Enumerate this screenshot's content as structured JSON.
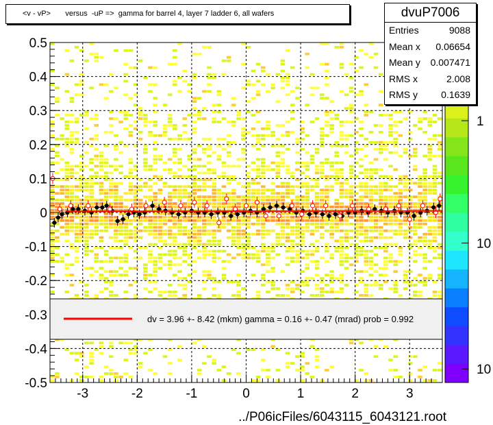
{
  "chart_data": {
    "type": "heatmap",
    "title": "<v - vP>       versus  -uP =>  gamma for barrel 4, layer 7 ladder 6, all wafers",
    "xlabel": "../P06icFiles/6043115_6043121.root",
    "ylabel": "",
    "xlim": [
      -3.6,
      3.6
    ],
    "ylim": [
      -0.5,
      0.5
    ],
    "x_ticks": [
      {
        "v": -3,
        "label": "-3"
      },
      {
        "v": -2,
        "label": "-2"
      },
      {
        "v": -1,
        "label": "-1"
      },
      {
        "v": 0,
        "label": "0"
      },
      {
        "v": 1,
        "label": "1"
      },
      {
        "v": 2,
        "label": "2"
      },
      {
        "v": 3,
        "label": "3"
      }
    ],
    "y_ticks": [
      {
        "v": 0.5,
        "label": "0.5"
      },
      {
        "v": 0.4,
        "label": "0.4"
      },
      {
        "v": 0.3,
        "label": "0.3"
      },
      {
        "v": 0.2,
        "label": "0.2"
      },
      {
        "v": 0.1,
        "label": "0.1"
      },
      {
        "v": 0,
        "label": "0"
      },
      {
        "v": -0.1,
        "label": "-0.1"
      },
      {
        "v": -0.2,
        "label": "-0.2"
      },
      {
        "v": -0.3,
        "label": "-0.3"
      },
      {
        "v": -0.4,
        "label": "-0.4"
      },
      {
        "v": -0.5,
        "label": "-0.5"
      }
    ],
    "grid": true,
    "colorbar": {
      "scale": "log",
      "labels": [
        {
          "label": "1",
          "frac": 0.77
        },
        {
          "label": "10",
          "frac": 0.41
        },
        {
          "label": "10",
          "frac": 0.04
        }
      ],
      "colors": [
        "#7f00ff",
        "#5a19ff",
        "#3333ff",
        "#0f4cff",
        "#0a7fff",
        "#14b4ff",
        "#1fe6ff",
        "#33ffcc",
        "#2fffa0",
        "#33ff66",
        "#36f32e",
        "#5ae61c",
        "#84e61a",
        "#b4e619",
        "#dcf01a",
        "#ffff33",
        "#ffd633",
        "#ff9933"
      ]
    },
    "fit_line": {
      "slope": 0.00016,
      "intercept": 0.00396
    },
    "profile_points_black": [
      {
        "x": -3.52,
        "y": -0.03
      },
      {
        "x": -3.45,
        "y": -0.015
      },
      {
        "x": -3.38,
        "y": -0.005
      },
      {
        "x": -3.28,
        "y": 0.0
      },
      {
        "x": -3.18,
        "y": 0.01
      },
      {
        "x": -3.08,
        "y": 0.01
      },
      {
        "x": -2.96,
        "y": 0.005
      },
      {
        "x": -2.84,
        "y": 0.0
      },
      {
        "x": -2.74,
        "y": 0.015
      },
      {
        "x": -2.64,
        "y": 0.015
      },
      {
        "x": -2.56,
        "y": 0.02
      },
      {
        "x": -2.46,
        "y": 0.005
      },
      {
        "x": -2.36,
        "y": -0.025
      },
      {
        "x": -2.26,
        "y": -0.02
      },
      {
        "x": -2.16,
        "y": -0.005
      },
      {
        "x": -2.06,
        "y": 0.0
      },
      {
        "x": -1.96,
        "y": -0.005
      },
      {
        "x": -1.86,
        "y": 0.0
      },
      {
        "x": -1.72,
        "y": 0.02
      },
      {
        "x": -1.6,
        "y": 0.01
      },
      {
        "x": -1.48,
        "y": 0.005
      },
      {
        "x": -1.36,
        "y": 0.0
      },
      {
        "x": -1.24,
        "y": -0.005
      },
      {
        "x": -1.12,
        "y": 0.0
      },
      {
        "x": -1.0,
        "y": 0.005
      },
      {
        "x": -0.88,
        "y": 0.0
      },
      {
        "x": -0.76,
        "y": 0.0
      },
      {
        "x": -0.64,
        "y": -0.005
      },
      {
        "x": -0.52,
        "y": 0.0
      },
      {
        "x": -0.4,
        "y": 0.0
      },
      {
        "x": -0.28,
        "y": -0.01
      },
      {
        "x": -0.16,
        "y": -0.005
      },
      {
        "x": -0.04,
        "y": 0.0
      },
      {
        "x": 0.08,
        "y": 0.005
      },
      {
        "x": 0.2,
        "y": 0.0
      },
      {
        "x": 0.32,
        "y": 0.01
      },
      {
        "x": 0.44,
        "y": 0.015
      },
      {
        "x": 0.56,
        "y": 0.02
      },
      {
        "x": 0.68,
        "y": 0.015
      },
      {
        "x": 0.8,
        "y": 0.01
      },
      {
        "x": 0.92,
        "y": 0.0
      },
      {
        "x": 1.04,
        "y": 0.005
      },
      {
        "x": 1.16,
        "y": -0.005
      },
      {
        "x": 1.28,
        "y": 0.0
      },
      {
        "x": 1.4,
        "y": -0.005
      },
      {
        "x": 1.52,
        "y": -0.01
      },
      {
        "x": 1.64,
        "y": -0.005
      },
      {
        "x": 1.76,
        "y": -0.01
      },
      {
        "x": 1.88,
        "y": 0.0
      },
      {
        "x": 2.0,
        "y": 0.0
      },
      {
        "x": 2.12,
        "y": 0.005
      },
      {
        "x": 2.24,
        "y": 0.0
      },
      {
        "x": 2.36,
        "y": 0.01
      },
      {
        "x": 2.48,
        "y": 0.005
      },
      {
        "x": 2.6,
        "y": 0.0
      },
      {
        "x": 2.72,
        "y": 0.005
      },
      {
        "x": 2.84,
        "y": 0.0
      },
      {
        "x": 2.96,
        "y": 0.0
      },
      {
        "x": 3.08,
        "y": -0.01
      },
      {
        "x": 3.2,
        "y": 0.0
      },
      {
        "x": 3.32,
        "y": 0.005
      },
      {
        "x": 3.44,
        "y": 0.015
      },
      {
        "x": 3.54,
        "y": 0.02
      }
    ],
    "profile_points_red": [
      {
        "x": -3.55,
        "y": 0.1
      },
      {
        "x": -3.42,
        "y": 0.01
      },
      {
        "x": -3.22,
        "y": 0.02
      },
      {
        "x": -2.9,
        "y": 0.02
      },
      {
        "x": -2.5,
        "y": 0.01
      },
      {
        "x": -2.1,
        "y": 0.01
      },
      {
        "x": -1.84,
        "y": 0.02
      },
      {
        "x": -1.5,
        "y": 0.03
      },
      {
        "x": -1.2,
        "y": 0.02
      },
      {
        "x": -0.95,
        "y": 0.03
      },
      {
        "x": -0.72,
        "y": 0.02
      },
      {
        "x": -0.5,
        "y": -0.03
      },
      {
        "x": -0.36,
        "y": 0.04
      },
      {
        "x": -0.2,
        "y": 0.01
      },
      {
        "x": 0.0,
        "y": 0.02
      },
      {
        "x": 0.2,
        "y": 0.03
      },
      {
        "x": 0.36,
        "y": -0.01
      },
      {
        "x": 0.6,
        "y": -0.01
      },
      {
        "x": 0.84,
        "y": 0.02
      },
      {
        "x": 1.02,
        "y": -0.005
      },
      {
        "x": 1.22,
        "y": 0.02
      },
      {
        "x": 1.46,
        "y": 0.02
      },
      {
        "x": 1.72,
        "y": -0.01
      },
      {
        "x": 1.95,
        "y": 0.02
      },
      {
        "x": 2.25,
        "y": 0.01
      },
      {
        "x": 2.56,
        "y": 0.01
      },
      {
        "x": 2.8,
        "y": 0.02
      },
      {
        "x": 3.0,
        "y": -0.02
      },
      {
        "x": 3.24,
        "y": 0.02
      },
      {
        "x": 3.48,
        "y": 0.0
      },
      {
        "x": 3.56,
        "y": 0.04
      }
    ]
  },
  "stats": {
    "title": "dvuP7006",
    "rows": [
      {
        "name": "Entries",
        "value": "9088"
      },
      {
        "name": "Mean x",
        "value": "0.06654"
      },
      {
        "name": "Mean y",
        "value": "0.007471"
      },
      {
        "name": "RMS x",
        "value": "2.008"
      },
      {
        "name": "RMS y",
        "value": "0.1639"
      }
    ]
  },
  "fit_legend": {
    "text": "dv =    3.96 +-  8.42 (mkm) gamma =    0.16 +-  0.47 (mrad) prob = 0.992",
    "line_color": "#ff0000"
  }
}
